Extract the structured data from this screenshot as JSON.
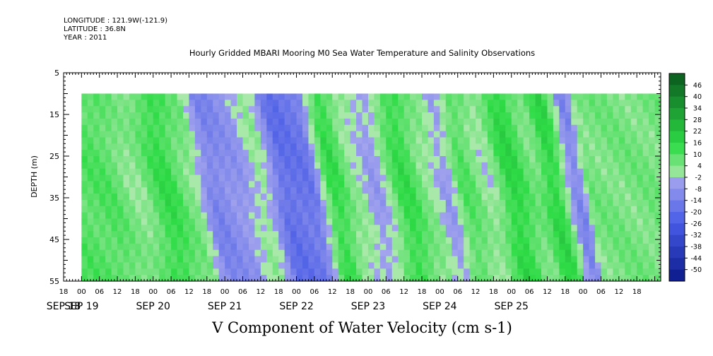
{
  "header": {
    "longitude": "LONGITUDE : 121.9W(-121.9)",
    "latitude": "LATITUDE : 36.8N",
    "year": "YEAR : 2011"
  },
  "chart_data": {
    "type": "heatmap",
    "title": "Hourly Gridded MBARI Mooring M0 Sea Water Temperature and Salinity Observations",
    "xlabel": "V Component of Water Velocity (cm s-1)",
    "ylabel": "DEPTH (m)",
    "ylim": [
      5,
      55
    ],
    "y_inverted": true,
    "y_ticks": [
      "5",
      "15",
      "25",
      "35",
      "45",
      "55"
    ],
    "x_hour_ticks": [
      "18",
      "00",
      "06",
      "12",
      "18",
      "00",
      "06",
      "12",
      "18",
      "00",
      "06",
      "12",
      "18",
      "00",
      "06",
      "12",
      "18",
      "00",
      "06",
      "12",
      "18",
      "00",
      "06",
      "12",
      "18",
      "00",
      "06",
      "12",
      "18",
      "00",
      "06",
      "12",
      "18"
    ],
    "x_day_labels": [
      "SEP 18",
      "SEP 19",
      "SEP 20",
      "SEP 21",
      "SEP 22",
      "SEP 23",
      "SEP 24",
      "SEP 25"
    ],
    "x_start": "SEP 18 18:00",
    "data_depth_range": [
      10,
      55
    ],
    "v_component_pattern": [
      {
        "time": "SEP 19 02:00",
        "value": 10
      },
      {
        "time": "SEP 19 12:00",
        "value": 4
      },
      {
        "time": "SEP 19 22:00",
        "value": 14
      },
      {
        "time": "SEP 20 06:00",
        "value": 6
      },
      {
        "time": "SEP 20 14:00",
        "value": -10
      },
      {
        "time": "SEP 20 22:00",
        "value": -6
      },
      {
        "time": "SEP 21 06:00",
        "value": 2
      },
      {
        "time": "SEP 21 14:00",
        "value": -16
      },
      {
        "time": "SEP 21 22:00",
        "value": -14
      },
      {
        "time": "SEP 22 06:00",
        "value": 14
      },
      {
        "time": "SEP 22 14:00",
        "value": 2
      },
      {
        "time": "SEP 22 20:00",
        "value": -4
      },
      {
        "time": "SEP 23 06:00",
        "value": 14
      },
      {
        "time": "SEP 23 14:00",
        "value": 4
      },
      {
        "time": "SEP 23 20:00",
        "value": -4
      },
      {
        "time": "SEP 24 02:00",
        "value": 10
      },
      {
        "time": "SEP 24 10:00",
        "value": 2
      },
      {
        "time": "SEP 24 18:00",
        "value": 16
      },
      {
        "time": "SEP 25 02:00",
        "value": 6
      },
      {
        "time": "SEP 25 08:00",
        "value": 16
      },
      {
        "time": "SEP 25 16:00",
        "value": -10
      },
      {
        "time": "SEP 25 20:00",
        "value": 6
      }
    ],
    "colorbar": {
      "labels": [
        "46",
        "40",
        "34",
        "28",
        "22",
        "16",
        "10",
        "4",
        "-2",
        "-8",
        "-14",
        "-20",
        "-26",
        "-32",
        "-38",
        "-44",
        "-50"
      ],
      "min": -50,
      "max": 49,
      "color_negative": "#0a1a8a",
      "color_zero": "#a8e8a8",
      "color_positive": "#0a5a1e"
    },
    "grid": false
  }
}
